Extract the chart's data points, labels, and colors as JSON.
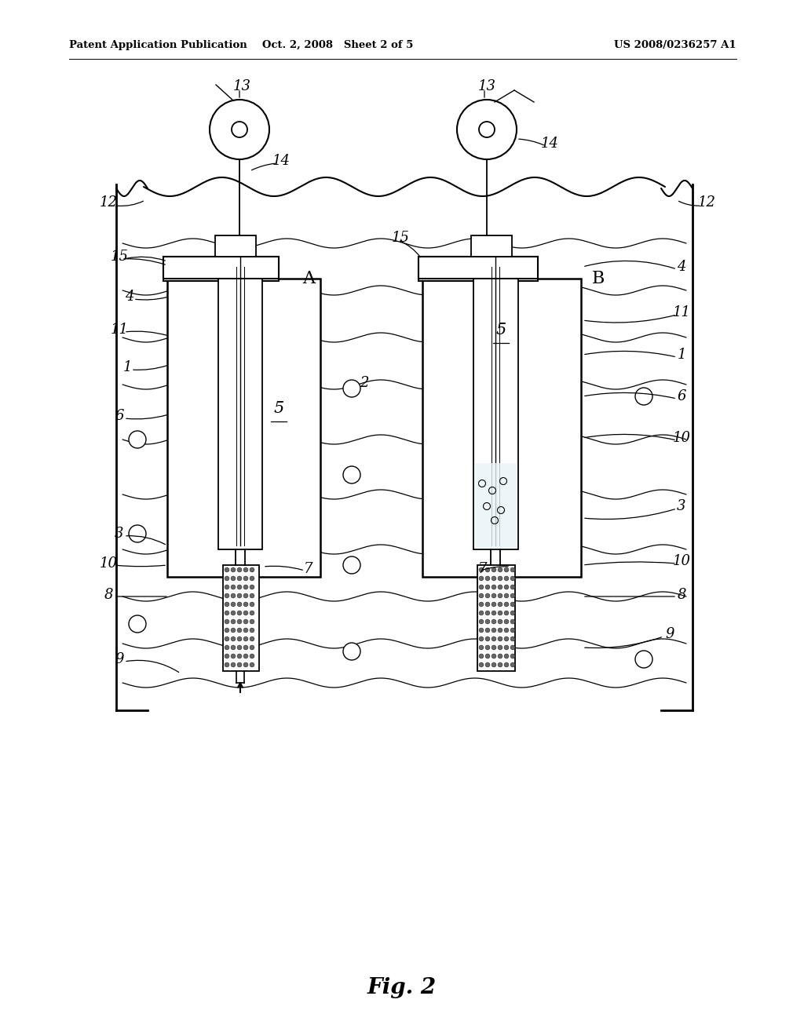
{
  "bg_color": "#ffffff",
  "header_left": "Patent Application Publication",
  "header_mid": "Oct. 2, 2008   Sheet 2 of 5",
  "header_right": "US 2008/0236257 A1",
  "fig_label": "Fig. 2",
  "title_fontsize": 9.5,
  "fig_fontsize": 20,
  "label_fontsize": 13
}
